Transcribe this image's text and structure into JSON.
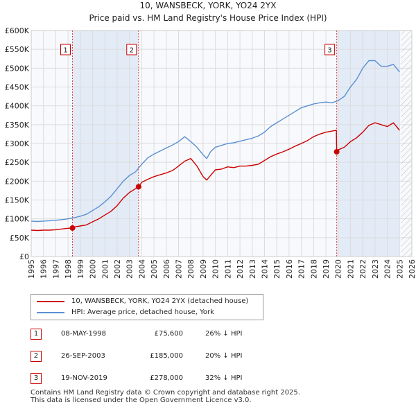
{
  "chart_data": {
    "type": "line",
    "title": "10, WANSBECK, YORK, YO24 2YX",
    "subtitle": "Price paid vs. HM Land Registry's House Price Index (HPI)",
    "xlabel": "",
    "ylabel": "",
    "xlim": [
      1995,
      2026
    ],
    "ylim": [
      0,
      600000
    ],
    "x_ticks": [
      "1995",
      "1996",
      "1997",
      "1998",
      "1999",
      "2000",
      "2001",
      "2002",
      "2003",
      "2004",
      "2005",
      "2006",
      "2007",
      "2008",
      "2009",
      "2010",
      "2011",
      "2012",
      "2013",
      "2014",
      "2015",
      "2016",
      "2017",
      "2018",
      "2019",
      "2020",
      "2021",
      "2022",
      "2023",
      "2024",
      "2025",
      "2026"
    ],
    "y_ticks": [
      {
        "value": 0,
        "label": "£0"
      },
      {
        "value": 50000,
        "label": "£50K"
      },
      {
        "value": 100000,
        "label": "£100K"
      },
      {
        "value": 150000,
        "label": "£150K"
      },
      {
        "value": 200000,
        "label": "£200K"
      },
      {
        "value": 250000,
        "label": "£250K"
      },
      {
        "value": 300000,
        "label": "£300K"
      },
      {
        "value": 350000,
        "label": "£350K"
      },
      {
        "value": 400000,
        "label": "£400K"
      },
      {
        "value": 450000,
        "label": "£450K"
      },
      {
        "value": 500000,
        "label": "£500K"
      },
      {
        "value": 550000,
        "label": "£550K"
      },
      {
        "value": 600000,
        "label": "£600K"
      }
    ],
    "grid": true,
    "series": [
      {
        "name": "10, WANSBECK, YORK, YO24 2YX (detached house)",
        "color": "#cc0000",
        "x": [
          1995.0,
          1995.5,
          1996.0,
          1996.5,
          1997.0,
          1997.5,
          1998.0,
          1998.36,
          1998.6,
          1999.0,
          1999.5,
          2000.0,
          2000.5,
          2001.0,
          2001.5,
          2002.0,
          2002.5,
          2003.0,
          2003.5,
          2003.74,
          2004.0,
          2004.5,
          2005.0,
          2005.5,
          2006.0,
          2006.5,
          2007.0,
          2007.5,
          2008.0,
          2008.5,
          2009.0,
          2009.3,
          2009.6,
          2010.0,
          2010.5,
          2011.0,
          2011.5,
          2012.0,
          2012.5,
          2013.0,
          2013.5,
          2014.0,
          2014.5,
          2015.0,
          2015.5,
          2016.0,
          2016.5,
          2017.0,
          2017.5,
          2018.0,
          2018.5,
          2019.0,
          2019.5,
          2019.85,
          2019.88,
          2020.0,
          2020.5,
          2021.0,
          2021.5,
          2022.0,
          2022.5,
          2023.0,
          2023.5,
          2024.0,
          2024.5,
          2025.0
        ],
        "values": [
          70000,
          69000,
          70000,
          70000,
          71000,
          73000,
          75000,
          75600,
          79000,
          81000,
          84000,
          92000,
          100000,
          110000,
          120000,
          135000,
          155000,
          170000,
          180000,
          185000,
          197000,
          205000,
          212000,
          217000,
          222000,
          228000,
          240000,
          253000,
          260000,
          240000,
          212000,
          203000,
          215000,
          230000,
          232000,
          238000,
          236000,
          240000,
          240000,
          242000,
          245000,
          255000,
          265000,
          272000,
          278000,
          285000,
          293000,
          300000,
          308000,
          318000,
          325000,
          330000,
          333000,
          335000,
          278000,
          283000,
          290000,
          305000,
          315000,
          330000,
          348000,
          355000,
          350000,
          345000,
          355000,
          335000
        ]
      },
      {
        "name": "HPI: Average price, detached house, York",
        "color": "#5a8fd0",
        "x": [
          1995.0,
          1995.5,
          1996.0,
          1996.5,
          1997.0,
          1997.5,
          1998.0,
          1998.5,
          1999.0,
          1999.5,
          2000.0,
          2000.5,
          2001.0,
          2001.5,
          2002.0,
          2002.5,
          2003.0,
          2003.5,
          2004.0,
          2004.5,
          2005.0,
          2005.5,
          2006.0,
          2006.5,
          2007.0,
          2007.5,
          2008.0,
          2008.5,
          2009.0,
          2009.3,
          2009.6,
          2010.0,
          2010.5,
          2011.0,
          2011.5,
          2012.0,
          2012.5,
          2013.0,
          2013.5,
          2014.0,
          2014.5,
          2015.0,
          2015.5,
          2016.0,
          2016.5,
          2017.0,
          2017.5,
          2018.0,
          2018.5,
          2019.0,
          2019.5,
          2020.0,
          2020.5,
          2021.0,
          2021.5,
          2022.0,
          2022.5,
          2023.0,
          2023.5,
          2024.0,
          2024.5,
          2025.0
        ],
        "values": [
          94000,
          93000,
          94000,
          95000,
          96000,
          98000,
          100000,
          103000,
          107000,
          112000,
          122000,
          132000,
          145000,
          160000,
          180000,
          200000,
          215000,
          225000,
          245000,
          262000,
          272000,
          280000,
          288000,
          296000,
          305000,
          318000,
          305000,
          290000,
          270000,
          260000,
          278000,
          290000,
          295000,
          300000,
          302000,
          306000,
          310000,
          314000,
          320000,
          330000,
          345000,
          355000,
          365000,
          375000,
          385000,
          395000,
          400000,
          405000,
          408000,
          410000,
          408000,
          414000,
          425000,
          450000,
          470000,
          500000,
          520000,
          520000,
          505000,
          505000,
          510000,
          490000
        ]
      }
    ],
    "annotations": [
      {
        "label": "1",
        "x": 1998.36
      },
      {
        "label": "2",
        "x": 2003.74
      },
      {
        "label": "3",
        "x": 2019.88
      }
    ],
    "sale_points": [
      {
        "x": 1998.36,
        "y": 75600
      },
      {
        "x": 2003.74,
        "y": 185000
      },
      {
        "x": 2019.88,
        "y": 278000
      }
    ],
    "shaded_ranges": [
      [
        1998.36,
        2003.74
      ],
      [
        2019.88,
        2025.0
      ]
    ],
    "hatched_after": 2025.1
  },
  "legend": {
    "items": [
      {
        "label": "10, WANSBECK, YORK, YO24 2YX (detached house)",
        "color": "#cc0000"
      },
      {
        "label": "HPI: Average price, detached house, York",
        "color": "#5a8fd0"
      }
    ]
  },
  "sales": [
    {
      "num": "1",
      "date": "08-MAY-1998",
      "price": "£75,600",
      "hpi": "26% ↓ HPI"
    },
    {
      "num": "2",
      "date": "26-SEP-2003",
      "price": "£185,000",
      "hpi": "20% ↓ HPI"
    },
    {
      "num": "3",
      "date": "19-NOV-2019",
      "price": "£278,000",
      "hpi": "32% ↓ HPI"
    }
  ],
  "footer": {
    "line1": "Contains HM Land Registry data © Crown copyright and database right 2025.",
    "line2": "This data is licensed under the Open Government Licence v3.0."
  }
}
